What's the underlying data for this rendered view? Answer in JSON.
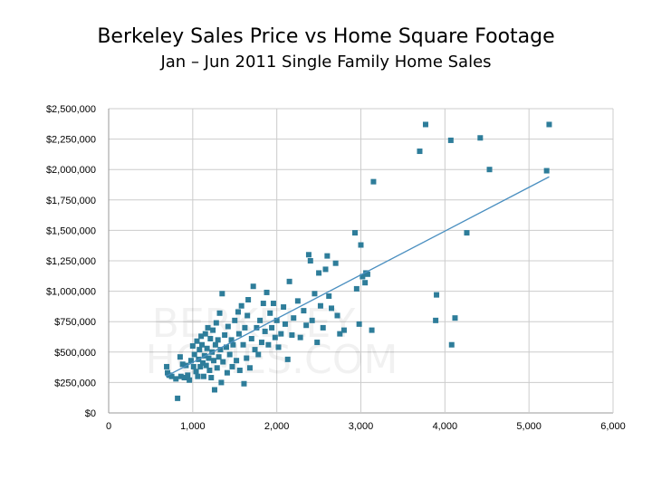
{
  "title": "Berkeley Sales Price vs Home Square Footage",
  "subtitle": "Jan – Jun 2011 Single Family Home Sales",
  "colors": {
    "marker": "#2e7d9a",
    "trendline": "#4a8fc0",
    "grid": "#cccccc",
    "axis": "#999999"
  },
  "chart_data": {
    "type": "scatter",
    "title": "Berkeley Sales Price vs Home Square Footage",
    "subtitle": "Jan – Jun 2011 Single Family Home Sales",
    "xlabel": "",
    "ylabel": "",
    "xlim": [
      0,
      6000
    ],
    "ylim": [
      0,
      2500000
    ],
    "grid": true,
    "legend": "none",
    "x_ticks": [
      0,
      1000,
      2000,
      3000,
      4000,
      5000,
      6000
    ],
    "x_tick_labels": [
      "0",
      "1,000",
      "2,000",
      "3,000",
      "4,000",
      "5,000",
      "6,000"
    ],
    "y_ticks": [
      0,
      250000,
      500000,
      750000,
      1000000,
      1250000,
      1500000,
      1750000,
      2000000,
      2250000,
      2500000
    ],
    "y_tick_labels": [
      "$0",
      "$250,000",
      "$500,000",
      "$750,000",
      "$1,000,000",
      "$1,250,000",
      "$1,500,000",
      "$1,750,000",
      "$2,000,000",
      "$2,250,000",
      "$2,500,000"
    ],
    "trendline": {
      "x": [
        680,
        5240
      ],
      "y": [
        300000,
        1940000
      ]
    },
    "points": [
      [
        690,
        380000
      ],
      [
        700,
        330000
      ],
      [
        720,
        310000
      ],
      [
        750,
        300000
      ],
      [
        800,
        280000
      ],
      [
        820,
        120000
      ],
      [
        850,
        460000
      ],
      [
        860,
        300000
      ],
      [
        880,
        400000
      ],
      [
        900,
        290000
      ],
      [
        920,
        390000
      ],
      [
        940,
        310000
      ],
      [
        960,
        270000
      ],
      [
        980,
        430000
      ],
      [
        1000,
        550000
      ],
      [
        1010,
        380000
      ],
      [
        1020,
        480000
      ],
      [
        1040,
        340000
      ],
      [
        1050,
        590000
      ],
      [
        1060,
        300000
      ],
      [
        1070,
        440000
      ],
      [
        1080,
        520000
      ],
      [
        1090,
        380000
      ],
      [
        1100,
        630000
      ],
      [
        1110,
        560000
      ],
      [
        1120,
        410000
      ],
      [
        1130,
        300000
      ],
      [
        1140,
        470000
      ],
      [
        1150,
        650000
      ],
      [
        1160,
        390000
      ],
      [
        1170,
        530000
      ],
      [
        1180,
        700000
      ],
      [
        1190,
        450000
      ],
      [
        1200,
        350000
      ],
      [
        1210,
        610000
      ],
      [
        1220,
        290000
      ],
      [
        1230,
        500000
      ],
      [
        1240,
        680000
      ],
      [
        1250,
        430000
      ],
      [
        1260,
        190000
      ],
      [
        1270,
        560000
      ],
      [
        1280,
        740000
      ],
      [
        1290,
        370000
      ],
      [
        1300,
        600000
      ],
      [
        1310,
        460000
      ],
      [
        1320,
        820000
      ],
      [
        1330,
        520000
      ],
      [
        1340,
        250000
      ],
      [
        1350,
        980000
      ],
      [
        1360,
        420000
      ],
      [
        1380,
        640000
      ],
      [
        1400,
        540000
      ],
      [
        1410,
        330000
      ],
      [
        1420,
        710000
      ],
      [
        1440,
        480000
      ],
      [
        1460,
        600000
      ],
      [
        1470,
        380000
      ],
      [
        1480,
        560000
      ],
      [
        1500,
        760000
      ],
      [
        1520,
        430000
      ],
      [
        1540,
        830000
      ],
      [
        1550,
        650000
      ],
      [
        1560,
        350000
      ],
      [
        1580,
        880000
      ],
      [
        1600,
        560000
      ],
      [
        1610,
        240000
      ],
      [
        1620,
        700000
      ],
      [
        1640,
        450000
      ],
      [
        1650,
        800000
      ],
      [
        1660,
        930000
      ],
      [
        1680,
        370000
      ],
      [
        1700,
        610000
      ],
      [
        1720,
        1040000
      ],
      [
        1740,
        520000
      ],
      [
        1760,
        700000
      ],
      [
        1780,
        480000
      ],
      [
        1800,
        760000
      ],
      [
        1820,
        580000
      ],
      [
        1840,
        900000
      ],
      [
        1860,
        670000
      ],
      [
        1880,
        990000
      ],
      [
        1900,
        560000
      ],
      [
        1920,
        820000
      ],
      [
        1940,
        700000
      ],
      [
        1960,
        900000
      ],
      [
        1980,
        620000
      ],
      [
        2000,
        760000
      ],
      [
        2020,
        540000
      ],
      [
        2050,
        650000
      ],
      [
        2080,
        870000
      ],
      [
        2100,
        730000
      ],
      [
        2130,
        440000
      ],
      [
        2150,
        1080000
      ],
      [
        2180,
        640000
      ],
      [
        2200,
        780000
      ],
      [
        2250,
        920000
      ],
      [
        2280,
        620000
      ],
      [
        2320,
        840000
      ],
      [
        2350,
        720000
      ],
      [
        2380,
        1300000
      ],
      [
        2400,
        1250000
      ],
      [
        2420,
        760000
      ],
      [
        2450,
        980000
      ],
      [
        2480,
        580000
      ],
      [
        2500,
        1150000
      ],
      [
        2520,
        880000
      ],
      [
        2550,
        700000
      ],
      [
        2580,
        1180000
      ],
      [
        2600,
        1290000
      ],
      [
        2620,
        960000
      ],
      [
        2650,
        860000
      ],
      [
        2700,
        1230000
      ],
      [
        2720,
        800000
      ],
      [
        2750,
        650000
      ],
      [
        2800,
        680000
      ],
      [
        2930,
        1480000
      ],
      [
        2950,
        1020000
      ],
      [
        2980,
        730000
      ],
      [
        3000,
        1380000
      ],
      [
        3020,
        1120000
      ],
      [
        3050,
        1070000
      ],
      [
        3060,
        1150000
      ],
      [
        3080,
        1140000
      ],
      [
        3130,
        680000
      ],
      [
        3150,
        1900000
      ],
      [
        3700,
        2150000
      ],
      [
        3770,
        2370000
      ],
      [
        3900,
        970000
      ],
      [
        3890,
        760000
      ],
      [
        4070,
        2240000
      ],
      [
        4080,
        560000
      ],
      [
        4120,
        780000
      ],
      [
        4260,
        1480000
      ],
      [
        4420,
        2260000
      ],
      [
        4530,
        2000000
      ],
      [
        5210,
        1990000
      ],
      [
        5240,
        2370000
      ]
    ]
  }
}
